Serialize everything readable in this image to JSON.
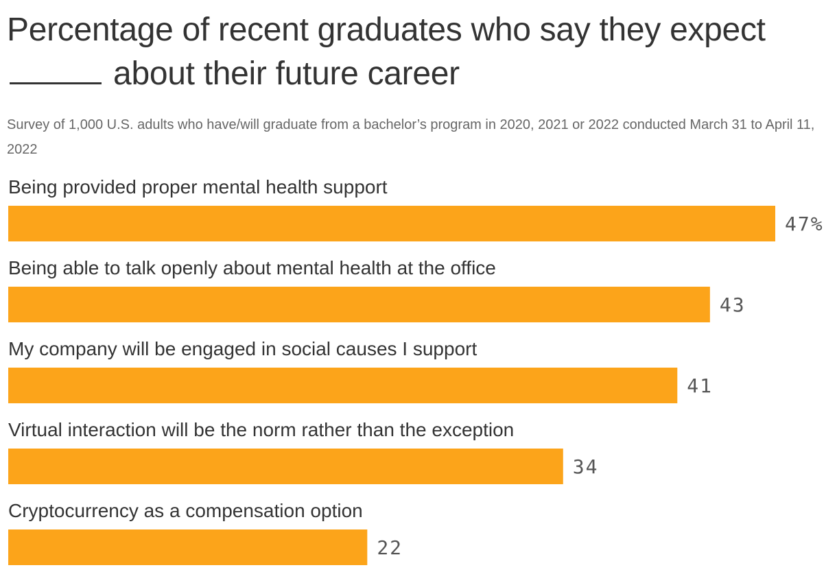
{
  "header": {
    "title_part1": "Percentage of recent graduates who say they expect",
    "title_part2": "about their future career",
    "subtitle": "Survey of 1,000 U.S. adults who have/will graduate from a bachelor’s program in 2020, 2021 or 2022 conducted March 31 to April 11, 2022"
  },
  "colors": {
    "bar": "#FCA41A",
    "text": "#333333",
    "subtitle": "#666666",
    "value_label": "#555555"
  },
  "chart_data": {
    "type": "bar",
    "orientation": "horizontal",
    "title": "Percentage of recent graduates who say they expect _____ about their future career",
    "subtitle": "Survey of 1,000 U.S. adults who have/will graduate from a bachelor’s program in 2020, 2021 or 2022 conducted March 31 to April 11, 2022",
    "categories": [
      "Being provided proper mental health support",
      "Being able to talk openly about mental health at the office",
      "My company will be engaged in social causes I support",
      "Virtual interaction will be the norm rather than the exception",
      "Cryptocurrency as a compensation option"
    ],
    "values": [
      47,
      43,
      41,
      34,
      22
    ],
    "value_labels": [
      "47%",
      "43",
      "41",
      "34",
      "22"
    ],
    "unit": "%",
    "xlim": [
      0,
      47
    ],
    "grid": false,
    "legend": "none"
  }
}
